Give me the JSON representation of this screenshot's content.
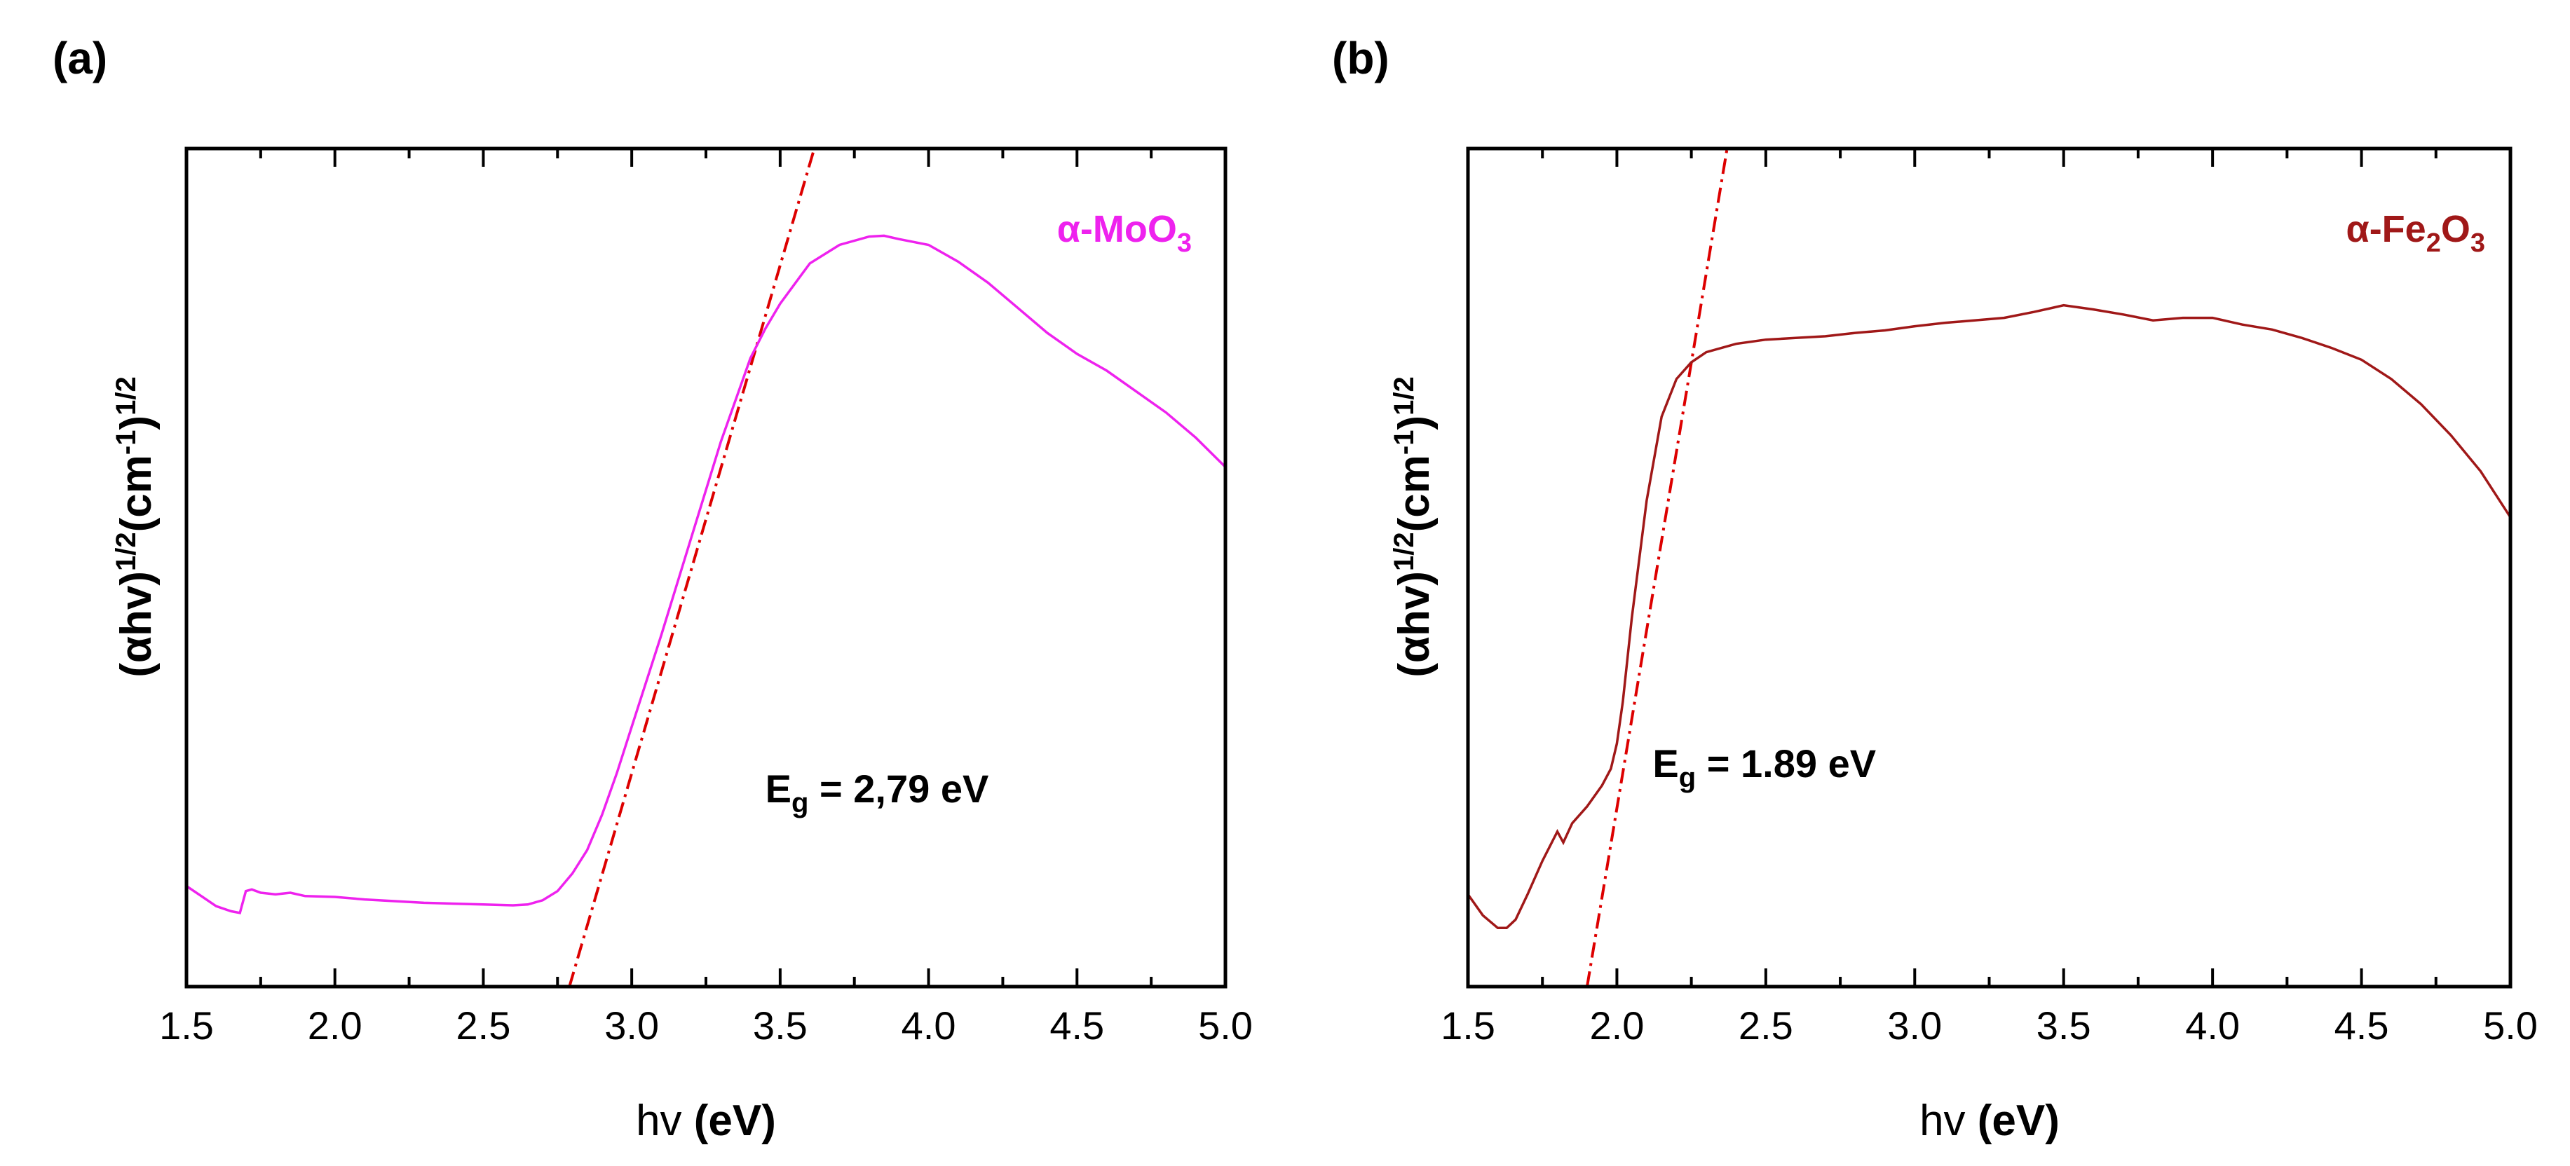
{
  "chart_data": [
    {
      "type": "line",
      "panel_label": "(a)",
      "xlabel": {
        "main": "hv",
        "unit": "(eV)"
      },
      "ylabel": {
        "p1": "(",
        "alpha": "α",
        "p2": "hv)",
        "sup1": "1/2",
        "p3": "(cm",
        "sup2": "-1",
        "p4": ")",
        "sup3": "1/2"
      },
      "xlim": [
        1.5,
        5.0
      ],
      "ylim": [
        0,
        100
      ],
      "xticks": [
        "1.5",
        "2.0",
        "2.5",
        "3.0",
        "3.5",
        "4.0",
        "4.5",
        "5.0"
      ],
      "legend": {
        "prefix": "α-MoO",
        "sub": "3",
        "position": "top-right",
        "color": "#ee22ee"
      },
      "annotation": {
        "E": "E",
        "sub": "g",
        "text": " = 2,79 eV",
        "x": 3.45,
        "y": 22
      },
      "series": [
        {
          "name": "α-MoO3",
          "color": "#ee22ee",
          "x": [
            1.5,
            1.55,
            1.6,
            1.65,
            1.68,
            1.7,
            1.72,
            1.75,
            1.8,
            1.85,
            1.9,
            2.0,
            2.1,
            2.2,
            2.3,
            2.4,
            2.5,
            2.6,
            2.65,
            2.7,
            2.75,
            2.8,
            2.85,
            2.9,
            2.95,
            3.0,
            3.1,
            3.2,
            3.3,
            3.4,
            3.45,
            3.5,
            3.6,
            3.7,
            3.8,
            3.85,
            3.9,
            4.0,
            4.1,
            4.2,
            4.3,
            4.4,
            4.5,
            4.6,
            4.7,
            4.8,
            4.9,
            5.0
          ],
          "y": [
            12,
            10.8,
            9.6,
            9.0,
            8.8,
            11.4,
            11.6,
            11.2,
            11.0,
            11.2,
            10.8,
            10.7,
            10.4,
            10.2,
            10.0,
            9.9,
            9.8,
            9.7,
            9.8,
            10.3,
            11.4,
            13.5,
            16.3,
            20.5,
            25.5,
            31,
            42,
            53.5,
            65,
            75,
            78.5,
            81.5,
            86.3,
            88.5,
            89.5,
            89.6,
            89.2,
            88.5,
            86.5,
            84,
            81,
            78,
            75.5,
            73.5,
            71,
            68.5,
            65.5,
            62
          ]
        }
      ],
      "fit_line": {
        "color": "#dd0000",
        "x": [
          2.79,
          3.615
        ],
        "y": [
          0,
          100
        ]
      }
    },
    {
      "type": "line",
      "panel_label": "(b)",
      "xlabel": {
        "main": "hv",
        "unit": "(eV)"
      },
      "ylabel": {
        "p1": "(",
        "alpha": "α",
        "p2": "hv)",
        "sup1": "1/2",
        "p3": "(cm",
        "sup2": "-1",
        "p4": ")",
        "sup3": "1/2"
      },
      "xlim": [
        1.5,
        5.0
      ],
      "ylim": [
        0,
        100
      ],
      "xticks": [
        "1.5",
        "2.0",
        "2.5",
        "3.0",
        "3.5",
        "4.0",
        "4.5",
        "5.0"
      ],
      "legend": {
        "prefix": "α-Fe",
        "sub1": "2",
        "mid": "O",
        "sub2": "3",
        "position": "top-right",
        "color": "#a01818"
      },
      "annotation": {
        "E": "E",
        "sub": "g",
        "text": " = 1.89 eV",
        "x": 2.12,
        "y": 25
      },
      "series": [
        {
          "name": "α-Fe2O3",
          "color": "#a01818",
          "x": [
            1.5,
            1.55,
            1.6,
            1.63,
            1.66,
            1.7,
            1.75,
            1.8,
            1.82,
            1.85,
            1.9,
            1.95,
            1.98,
            2.0,
            2.02,
            2.05,
            2.1,
            2.15,
            2.2,
            2.25,
            2.3,
            2.4,
            2.5,
            2.6,
            2.7,
            2.8,
            2.9,
            3.0,
            3.1,
            3.2,
            3.3,
            3.4,
            3.5,
            3.6,
            3.7,
            3.8,
            3.9,
            4.0,
            4.1,
            4.2,
            4.3,
            4.4,
            4.5,
            4.6,
            4.7,
            4.8,
            4.9,
            5.0
          ],
          "y": [
            11,
            8.5,
            7.0,
            7.0,
            8.0,
            11,
            15,
            18.5,
            17.2,
            19.5,
            21.5,
            24,
            26,
            29,
            34,
            44,
            58,
            68,
            72.5,
            74.5,
            75.7,
            76.7,
            77.2,
            77.4,
            77.6,
            78,
            78.3,
            78.8,
            79.2,
            79.5,
            79.8,
            80.5,
            81.3,
            80.8,
            80.2,
            79.5,
            79.8,
            79.8,
            79.0,
            78.4,
            77.4,
            76.2,
            74.8,
            72.5,
            69.5,
            65.8,
            61.5,
            56
          ]
        }
      ],
      "fit_line": {
        "color": "#dd0000",
        "x": [
          1.9,
          2.37
        ],
        "y": [
          0,
          100
        ]
      }
    }
  ]
}
